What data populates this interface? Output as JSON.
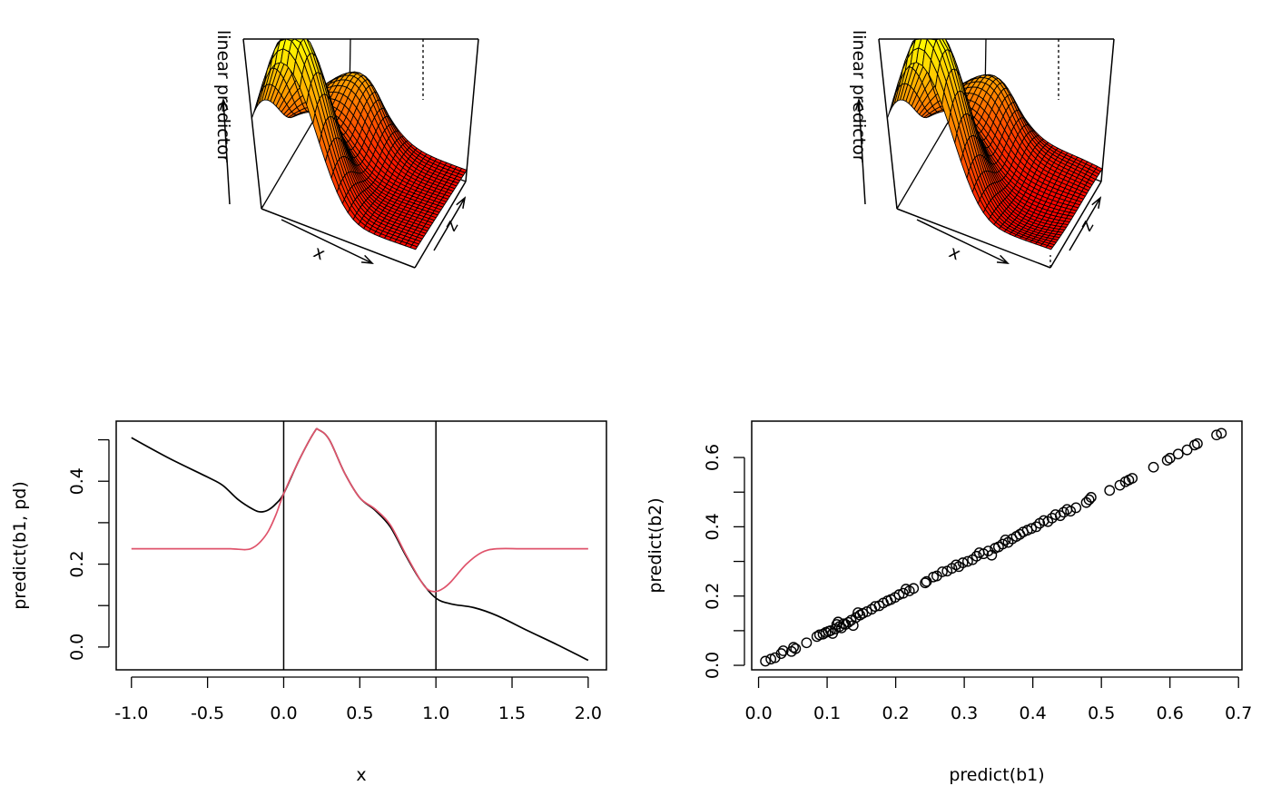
{
  "chart_data": [
    {
      "type": "surface",
      "panel": "top-left",
      "xlabel": "x",
      "ylabel": "z",
      "zlabel": "linear predictor",
      "colors": {
        "low": "#FF0000",
        "high": "#FFFF00",
        "mesh": "#000000"
      }
    },
    {
      "type": "surface",
      "panel": "top-right",
      "xlabel": "x",
      "ylabel": "z",
      "zlabel": "linear predictor",
      "colors": {
        "low": "#FF0000",
        "high": "#FFFF00",
        "mesh": "#000000"
      }
    },
    {
      "type": "line",
      "panel": "bottom-left",
      "xlabel": "x",
      "ylabel": "predict(b1, pd)",
      "xlim": [
        -1.1,
        2.12
      ],
      "ylim": [
        -0.055,
        0.545
      ],
      "xticks": [
        "-1.0",
        "-0.5",
        "0.0",
        "0.5",
        "1.0",
        "1.5",
        "2.0"
      ],
      "yticks": [
        "0.0",
        "0.2",
        "0.4"
      ],
      "yminor": [
        0.1,
        0.3,
        0.5
      ],
      "vlines": [
        0,
        1
      ],
      "series": [
        {
          "color": "#000000",
          "x": [
            -1.0,
            -0.75,
            -0.5,
            -0.4,
            -0.3,
            -0.2,
            -0.15,
            -0.1,
            -0.05,
            0.0,
            0.1,
            0.2,
            0.23,
            0.3,
            0.4,
            0.5,
            0.6,
            0.7,
            0.8,
            0.9,
            1.0,
            1.1,
            1.25,
            1.4,
            1.6,
            1.8,
            2.0
          ],
          "y": [
            0.505,
            0.455,
            0.41,
            0.39,
            0.356,
            0.332,
            0.326,
            0.331,
            0.346,
            0.37,
            0.45,
            0.518,
            0.524,
            0.5,
            0.42,
            0.36,
            0.33,
            0.29,
            0.222,
            0.16,
            0.118,
            0.104,
            0.095,
            0.076,
            0.04,
            0.005,
            -0.032
          ]
        },
        {
          "color": "#DF536B",
          "x": [
            -1.0,
            -0.5,
            -0.35,
            -0.25,
            -0.2,
            -0.15,
            -0.1,
            -0.05,
            0.0,
            0.1,
            0.2,
            0.23,
            0.3,
            0.4,
            0.5,
            0.6,
            0.7,
            0.8,
            0.9,
            0.95,
            1.0,
            1.05,
            1.1,
            1.2,
            1.3,
            1.4,
            1.6,
            2.0
          ],
          "y": [
            0.237,
            0.237,
            0.237,
            0.235,
            0.24,
            0.255,
            0.28,
            0.32,
            0.37,
            0.45,
            0.518,
            0.524,
            0.5,
            0.42,
            0.36,
            0.333,
            0.295,
            0.225,
            0.16,
            0.138,
            0.134,
            0.142,
            0.158,
            0.2,
            0.228,
            0.237,
            0.237,
            0.237
          ]
        }
      ]
    },
    {
      "type": "scatter",
      "panel": "bottom-right",
      "xlabel": "predict(b1)",
      "ylabel": "predict(b2)",
      "xlim": [
        -0.01,
        0.705
      ],
      "ylim": [
        -0.013,
        0.705
      ],
      "xticks": [
        "0.0",
        "0.1",
        "0.2",
        "0.3",
        "0.4",
        "0.5",
        "0.6",
        "0.7"
      ],
      "yticks": [
        "0.0",
        "0.2",
        "0.4",
        "0.6"
      ],
      "yminor": [
        0.1,
        0.3,
        0.5
      ],
      "marker": "open-circle",
      "points": [
        [
          0.01,
          0.012
        ],
        [
          0.018,
          0.018
        ],
        [
          0.024,
          0.022
        ],
        [
          0.033,
          0.034
        ],
        [
          0.036,
          0.042
        ],
        [
          0.048,
          0.04
        ],
        [
          0.051,
          0.052
        ],
        [
          0.054,
          0.048
        ],
        [
          0.07,
          0.065
        ],
        [
          0.085,
          0.083
        ],
        [
          0.089,
          0.088
        ],
        [
          0.094,
          0.09
        ],
        [
          0.098,
          0.095
        ],
        [
          0.102,
          0.098
        ],
        [
          0.105,
          0.1
        ],
        [
          0.108,
          0.092
        ],
        [
          0.112,
          0.105
        ],
        [
          0.114,
          0.118
        ],
        [
          0.116,
          0.125
        ],
        [
          0.118,
          0.112
        ],
        [
          0.121,
          0.108
        ],
        [
          0.124,
          0.12
        ],
        [
          0.127,
          0.118
        ],
        [
          0.131,
          0.124
        ],
        [
          0.135,
          0.13
        ],
        [
          0.138,
          0.115
        ],
        [
          0.142,
          0.138
        ],
        [
          0.145,
          0.152
        ],
        [
          0.148,
          0.145
        ],
        [
          0.152,
          0.15
        ],
        [
          0.158,
          0.155
        ],
        [
          0.165,
          0.162
        ],
        [
          0.17,
          0.17
        ],
        [
          0.176,
          0.172
        ],
        [
          0.182,
          0.18
        ],
        [
          0.188,
          0.186
        ],
        [
          0.193,
          0.19
        ],
        [
          0.199,
          0.196
        ],
        [
          0.205,
          0.204
        ],
        [
          0.211,
          0.208
        ],
        [
          0.215,
          0.22
        ],
        [
          0.22,
          0.215
        ],
        [
          0.226,
          0.222
        ],
        [
          0.243,
          0.238
        ],
        [
          0.245,
          0.242
        ],
        [
          0.255,
          0.255
        ],
        [
          0.26,
          0.258
        ],
        [
          0.268,
          0.27
        ],
        [
          0.275,
          0.272
        ],
        [
          0.282,
          0.28
        ],
        [
          0.288,
          0.29
        ],
        [
          0.292,
          0.285
        ],
        [
          0.298,
          0.296
        ],
        [
          0.305,
          0.3
        ],
        [
          0.312,
          0.305
        ],
        [
          0.318,
          0.315
        ],
        [
          0.322,
          0.325
        ],
        [
          0.328,
          0.322
        ],
        [
          0.335,
          0.33
        ],
        [
          0.34,
          0.318
        ],
        [
          0.345,
          0.338
        ],
        [
          0.35,
          0.342
        ],
        [
          0.356,
          0.35
        ],
        [
          0.36,
          0.362
        ],
        [
          0.364,
          0.355
        ],
        [
          0.37,
          0.365
        ],
        [
          0.376,
          0.372
        ],
        [
          0.381,
          0.378
        ],
        [
          0.386,
          0.385
        ],
        [
          0.392,
          0.39
        ],
        [
          0.398,
          0.395
        ],
        [
          0.405,
          0.4
        ],
        [
          0.41,
          0.41
        ],
        [
          0.416,
          0.418
        ],
        [
          0.422,
          0.415
        ],
        [
          0.428,
          0.425
        ],
        [
          0.433,
          0.435
        ],
        [
          0.44,
          0.432
        ],
        [
          0.445,
          0.442
        ],
        [
          0.45,
          0.45
        ],
        [
          0.455,
          0.445
        ],
        [
          0.463,
          0.455
        ],
        [
          0.478,
          0.47
        ],
        [
          0.482,
          0.478
        ],
        [
          0.485,
          0.485
        ],
        [
          0.512,
          0.505
        ],
        [
          0.527,
          0.52
        ],
        [
          0.535,
          0.53
        ],
        [
          0.54,
          0.535
        ],
        [
          0.545,
          0.54
        ],
        [
          0.576,
          0.572
        ],
        [
          0.596,
          0.592
        ],
        [
          0.6,
          0.598
        ],
        [
          0.612,
          0.61
        ],
        [
          0.625,
          0.622
        ],
        [
          0.636,
          0.636
        ],
        [
          0.64,
          0.64
        ],
        [
          0.668,
          0.665
        ],
        [
          0.675,
          0.67
        ]
      ]
    }
  ]
}
